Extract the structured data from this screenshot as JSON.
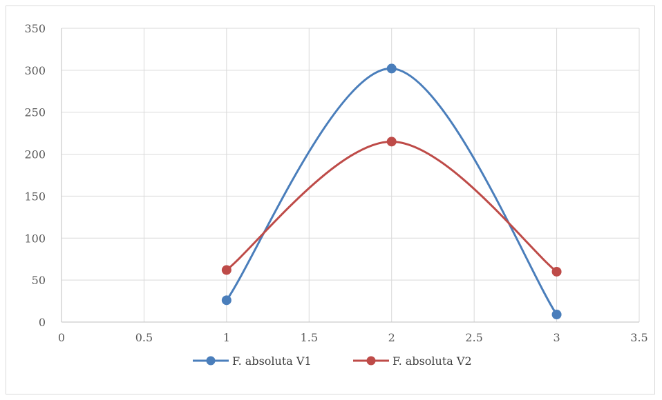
{
  "chart_data": {
    "type": "scatter",
    "title": "",
    "xlabel": "",
    "ylabel": "",
    "xlim": [
      0,
      3.5
    ],
    "ylim": [
      0,
      350
    ],
    "x_ticks": [
      "0",
      "0.5",
      "1",
      "1.5",
      "2",
      "2.5",
      "3",
      "3.5"
    ],
    "y_ticks": [
      "0",
      "50",
      "100",
      "150",
      "200",
      "250",
      "300",
      "350"
    ],
    "grid": true,
    "smooth_lines": true,
    "legend_position": "bottom",
    "series": [
      {
        "name": "F. absoluta V1",
        "color": "#4a7ebb",
        "x": [
          1,
          2,
          3
        ],
        "y": [
          26,
          302,
          9
        ]
      },
      {
        "name": "F. absoluta V2",
        "color": "#be4b48",
        "x": [
          1,
          2,
          3
        ],
        "y": [
          62,
          215,
          60
        ]
      }
    ]
  }
}
